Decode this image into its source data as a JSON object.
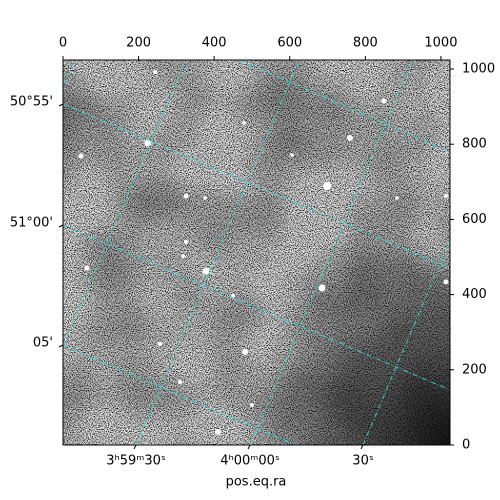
{
  "chart_data": {
    "type": "image",
    "xlabel": "pos.eq.ra",
    "xlim": [
      0,
      1024
    ],
    "xticks": [
      0,
      200,
      400,
      600,
      800,
      1000
    ],
    "y2lim": [
      0,
      1024
    ],
    "y2ticks": [
      0,
      200,
      400,
      600,
      800,
      1000
    ],
    "left_tick_labels": [
      "50°55'",
      "51°00'",
      "05'"
    ],
    "bottom_tick_labels": [
      "3ʰ59ᵐ30ˢ",
      "4ʰ00ᵐ00ˢ",
      "30ˢ"
    ]
  }
}
